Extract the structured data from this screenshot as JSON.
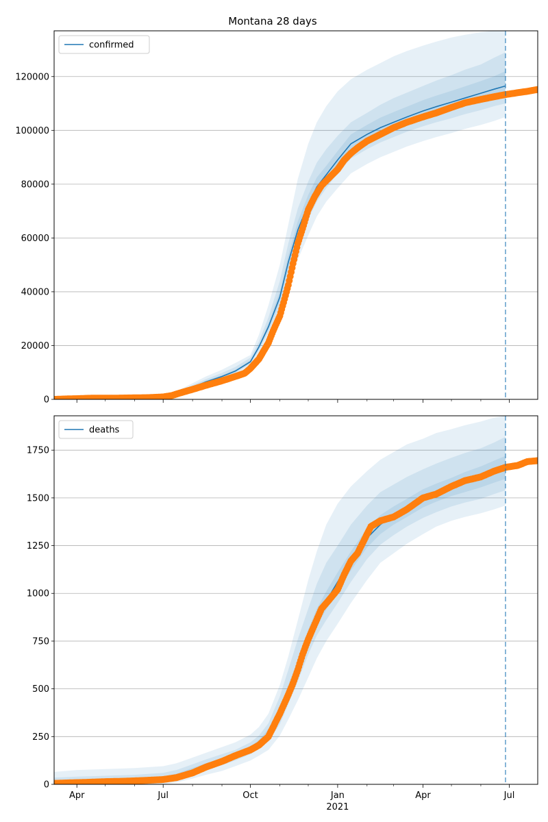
{
  "title": "Montana 28 days",
  "colors": {
    "model_line": "#1f77b4",
    "band": "#1f77b4",
    "observed": "#ff7f0e",
    "forecast_marker": "#1f77b4",
    "grid": "#b0b0b0"
  },
  "x_axis": {
    "range": [
      "2020-03-08",
      "2021-07-31"
    ],
    "major_ticks": [
      {
        "date": "2020-04-01",
        "label": "Apr"
      },
      {
        "date": "2020-07-01",
        "label": "Jul"
      },
      {
        "date": "2020-10-01",
        "label": "Oct"
      },
      {
        "date": "2021-01-01",
        "label": "Jan"
      },
      {
        "date": "2021-04-01",
        "label": "Apr"
      },
      {
        "date": "2021-07-01",
        "label": "Jul"
      }
    ],
    "minor_ticks": [
      "2020-05-01",
      "2020-06-01",
      "2020-08-01",
      "2020-09-01",
      "2020-11-01",
      "2020-12-01",
      "2021-02-01",
      "2021-03-01",
      "2021-05-01",
      "2021-06-01"
    ],
    "year_label": {
      "date": "2021-01-01",
      "label": "2021"
    }
  },
  "forecast_date": "2021-06-27",
  "chart_data": [
    {
      "type": "line",
      "name": "confirmed",
      "legend": "confirmed",
      "ylim": [
        0,
        137000
      ],
      "yticks": [
        0,
        20000,
        40000,
        60000,
        80000,
        100000,
        120000
      ],
      "grid": "horizontal",
      "legend_position": "top-left",
      "model": {
        "x": [
          "2020-03-08",
          "2020-04-01",
          "2020-05-01",
          "2020-06-01",
          "2020-07-01",
          "2020-07-15",
          "2020-08-01",
          "2020-08-15",
          "2020-09-01",
          "2020-09-15",
          "2020-10-01",
          "2020-10-10",
          "2020-10-20",
          "2020-11-01",
          "2020-11-10",
          "2020-11-20",
          "2020-12-01",
          "2020-12-10",
          "2020-12-20",
          "2021-01-01",
          "2021-01-15",
          "2021-02-01",
          "2021-02-15",
          "2021-03-01",
          "2021-03-15",
          "2021-04-01",
          "2021-04-15",
          "2021-05-01",
          "2021-05-15",
          "2021-06-01",
          "2021-06-15",
          "2021-06-27"
        ],
        "y": [
          50,
          300,
          700,
          800,
          900,
          2000,
          4500,
          6500,
          8500,
          10500,
          14000,
          19500,
          27000,
          38000,
          51000,
          63000,
          72500,
          79000,
          83500,
          89000,
          95000,
          98500,
          101000,
          103000,
          105000,
          107200,
          108800,
          110500,
          112000,
          113800,
          115300,
          116500
        ]
      },
      "bands": [
        {
          "label": "outer",
          "lower": [
            0,
            0,
            0,
            0,
            0,
            1000,
            3000,
            5000,
            7000,
            9000,
            12500,
            17000,
            23000,
            31000,
            42000,
            52000,
            61000,
            68000,
            73500,
            78500,
            84000,
            87500,
            90000,
            92000,
            94000,
            96000,
            97500,
            99000,
            100500,
            102000,
            103500,
            105000
          ],
          "upper": [
            500,
            800,
            1200,
            1300,
            1400,
            3000,
            6000,
            8500,
            11000,
            13500,
            16500,
            24000,
            35000,
            50000,
            65000,
            82000,
            95000,
            103000,
            109000,
            114500,
            119000,
            122500,
            125000,
            127500,
            129500,
            131500,
            133000,
            134500,
            135500,
            136500,
            137000,
            137000
          ]
        },
        {
          "label": "middle",
          "lower": [
            0,
            100,
            300,
            400,
            500,
            1400,
            3700,
            5700,
            7700,
            9700,
            13200,
            18200,
            25000,
            34500,
            46500,
            57500,
            67000,
            73500,
            78500,
            84000,
            89500,
            93000,
            95500,
            97500,
            99500,
            101500,
            103000,
            104500,
            106000,
            107500,
            109000,
            110000
          ],
          "upper": [
            200,
            600,
            1000,
            1100,
            1200,
            2600,
            5300,
            7500,
            9800,
            12000,
            15500,
            21500,
            30500,
            44000,
            58000,
            71000,
            81000,
            88000,
            93000,
            98000,
            103000,
            106500,
            109500,
            112000,
            114000,
            116500,
            118500,
            120500,
            122500,
            124500,
            127000,
            129000
          ]
        },
        {
          "label": "inner",
          "lower": [
            30,
            200,
            500,
            600,
            700,
            1700,
            4100,
            6100,
            8100,
            10100,
            13600,
            18800,
            26000,
            36200,
            48700,
            60200,
            69700,
            76200,
            81000,
            86500,
            92200,
            95700,
            98200,
            100200,
            102200,
            104300,
            105800,
            107400,
            108900,
            110600,
            112100,
            113000
          ],
          "upper": [
            100,
            450,
            850,
            950,
            1050,
            2300,
            4900,
            6900,
            9000,
            11000,
            14600,
            20200,
            28300,
            40100,
            53600,
            66200,
            76000,
            82500,
            86800,
            92300,
            98500,
            102000,
            104700,
            106800,
            108800,
            111200,
            112900,
            114700,
            116300,
            118300,
            120100,
            122000
          ]
        }
      ],
      "observed": {
        "x": [
          "2020-03-08",
          "2020-03-20",
          "2020-04-01",
          "2020-04-15",
          "2020-05-01",
          "2020-05-15",
          "2020-06-01",
          "2020-06-15",
          "2020-07-01",
          "2020-07-10",
          "2020-07-20",
          "2020-08-01",
          "2020-08-15",
          "2020-09-01",
          "2020-09-15",
          "2020-09-25",
          "2020-10-01",
          "2020-10-10",
          "2020-10-20",
          "2020-10-25",
          "2020-11-01",
          "2020-11-05",
          "2020-11-10",
          "2020-11-15",
          "2020-11-20",
          "2020-11-25",
          "2020-12-01",
          "2020-12-08",
          "2020-12-15",
          "2020-12-22",
          "2021-01-01",
          "2021-01-08",
          "2021-01-15",
          "2021-01-22",
          "2021-02-01",
          "2021-02-15",
          "2021-03-01",
          "2021-03-15",
          "2021-04-01",
          "2021-04-15",
          "2021-05-01",
          "2021-05-15",
          "2021-06-01",
          "2021-06-15",
          "2021-06-27",
          "2021-07-10",
          "2021-07-20",
          "2021-07-31"
        ],
        "y": [
          0,
          150,
          250,
          420,
          460,
          470,
          560,
          630,
          900,
          1400,
          2500,
          3700,
          5200,
          6900,
          8500,
          9700,
          11500,
          15000,
          21000,
          25500,
          31000,
          36000,
          42500,
          50500,
          58000,
          63500,
          70500,
          75500,
          79500,
          82000,
          85500,
          89000,
          91500,
          93500,
          96000,
          98500,
          101000,
          103000,
          105000,
          106500,
          108500,
          110200,
          111500,
          112500,
          113300,
          114000,
          114500,
          115200
        ]
      }
    },
    {
      "type": "line",
      "name": "deaths",
      "legend": "deaths",
      "ylim": [
        0,
        1930
      ],
      "yticks": [
        0,
        250,
        500,
        750,
        1000,
        1250,
        1500,
        1750
      ],
      "grid": "horizontal",
      "legend_position": "top-left",
      "model": {
        "x": [
          "2020-03-08",
          "2020-04-01",
          "2020-05-01",
          "2020-06-01",
          "2020-07-01",
          "2020-07-15",
          "2020-08-01",
          "2020-08-15",
          "2020-09-01",
          "2020-09-15",
          "2020-10-01",
          "2020-10-10",
          "2020-10-20",
          "2020-11-01",
          "2020-11-10",
          "2020-11-20",
          "2020-12-01",
          "2020-12-10",
          "2020-12-20",
          "2021-01-01",
          "2021-01-15",
          "2021-02-01",
          "2021-02-15",
          "2021-03-01",
          "2021-03-15",
          "2021-04-01",
          "2021-04-15",
          "2021-05-01",
          "2021-05-15",
          "2021-06-01",
          "2021-06-15",
          "2021-06-27"
        ],
        "y": [
          10,
          12,
          15,
          20,
          28,
          45,
          75,
          100,
          125,
          150,
          185,
          215,
          265,
          370,
          480,
          610,
          760,
          870,
          960,
          1060,
          1170,
          1290,
          1360,
          1410,
          1450,
          1500,
          1530,
          1560,
          1585,
          1610,
          1640,
          1660
        ]
      },
      "bands": [
        {
          "label": "outer",
          "lower": [
            0,
            0,
            0,
            0,
            0,
            10,
            30,
            50,
            70,
            95,
            125,
            150,
            180,
            255,
            340,
            440,
            560,
            660,
            750,
            840,
            950,
            1070,
            1160,
            1210,
            1260,
            1310,
            1350,
            1380,
            1400,
            1420,
            1440,
            1460
          ],
          "upper": [
            65,
            75,
            80,
            85,
            95,
            110,
            140,
            165,
            195,
            220,
            260,
            300,
            370,
            520,
            670,
            860,
            1070,
            1220,
            1360,
            1470,
            1560,
            1640,
            1700,
            1740,
            1780,
            1810,
            1840,
            1860,
            1880,
            1900,
            1920,
            1930
          ]
        },
        {
          "label": "middle",
          "lower": [
            0,
            0,
            2,
            5,
            10,
            25,
            55,
            78,
            100,
            125,
            158,
            185,
            225,
            315,
            420,
            540,
            680,
            780,
            860,
            950,
            1060,
            1180,
            1255,
            1305,
            1350,
            1395,
            1425,
            1455,
            1475,
            1495,
            1520,
            1540
          ],
          "upper": [
            35,
            40,
            45,
            50,
            60,
            75,
            105,
            130,
            158,
            180,
            220,
            255,
            320,
            460,
            600,
            760,
            920,
            1050,
            1160,
            1250,
            1360,
            1460,
            1530,
            1570,
            1610,
            1650,
            1680,
            1710,
            1735,
            1760,
            1790,
            1820
          ]
        },
        {
          "label": "inner",
          "lower": [
            5,
            7,
            9,
            13,
            20,
            35,
            65,
            90,
            113,
            138,
            172,
            200,
            245,
            345,
            455,
            580,
            720,
            830,
            915,
            1010,
            1120,
            1240,
            1310,
            1360,
            1400,
            1450,
            1480,
            1510,
            1530,
            1555,
            1580,
            1600
          ],
          "upper": [
            20,
            22,
            25,
            30,
            40,
            56,
            86,
            110,
            137,
            162,
            198,
            232,
            290,
            400,
            520,
            650,
            810,
            920,
            1010,
            1110,
            1220,
            1340,
            1410,
            1455,
            1495,
            1545,
            1575,
            1605,
            1635,
            1665,
            1695,
            1720
          ]
        }
      ],
      "observed": {
        "x": [
          "2020-03-08",
          "2020-03-25",
          "2020-04-10",
          "2020-05-01",
          "2020-05-20",
          "2020-06-10",
          "2020-07-01",
          "2020-07-15",
          "2020-08-01",
          "2020-08-15",
          "2020-09-01",
          "2020-09-15",
          "2020-10-01",
          "2020-10-10",
          "2020-10-20",
          "2020-10-25",
          "2020-11-01",
          "2020-11-10",
          "2020-11-15",
          "2020-11-20",
          "2020-11-25",
          "2020-12-01",
          "2020-12-08",
          "2020-12-15",
          "2020-12-22",
          "2021-01-01",
          "2021-01-08",
          "2021-01-15",
          "2021-01-22",
          "2021-02-01",
          "2021-02-05",
          "2021-02-15",
          "2021-03-01",
          "2021-03-15",
          "2021-04-01",
          "2021-04-15",
          "2021-05-01",
          "2021-05-15",
          "2021-06-01",
          "2021-06-15",
          "2021-06-27",
          "2021-07-10",
          "2021-07-20",
          "2021-07-31"
        ],
        "y": [
          5,
          8,
          10,
          14,
          16,
          20,
          25,
          35,
          60,
          90,
          120,
          150,
          180,
          205,
          250,
          300,
          370,
          470,
          530,
          600,
          680,
          760,
          840,
          920,
          960,
          1020,
          1100,
          1170,
          1210,
          1310,
          1350,
          1380,
          1400,
          1440,
          1500,
          1520,
          1560,
          1590,
          1610,
          1640,
          1660,
          1670,
          1690,
          1695
        ]
      }
    }
  ]
}
